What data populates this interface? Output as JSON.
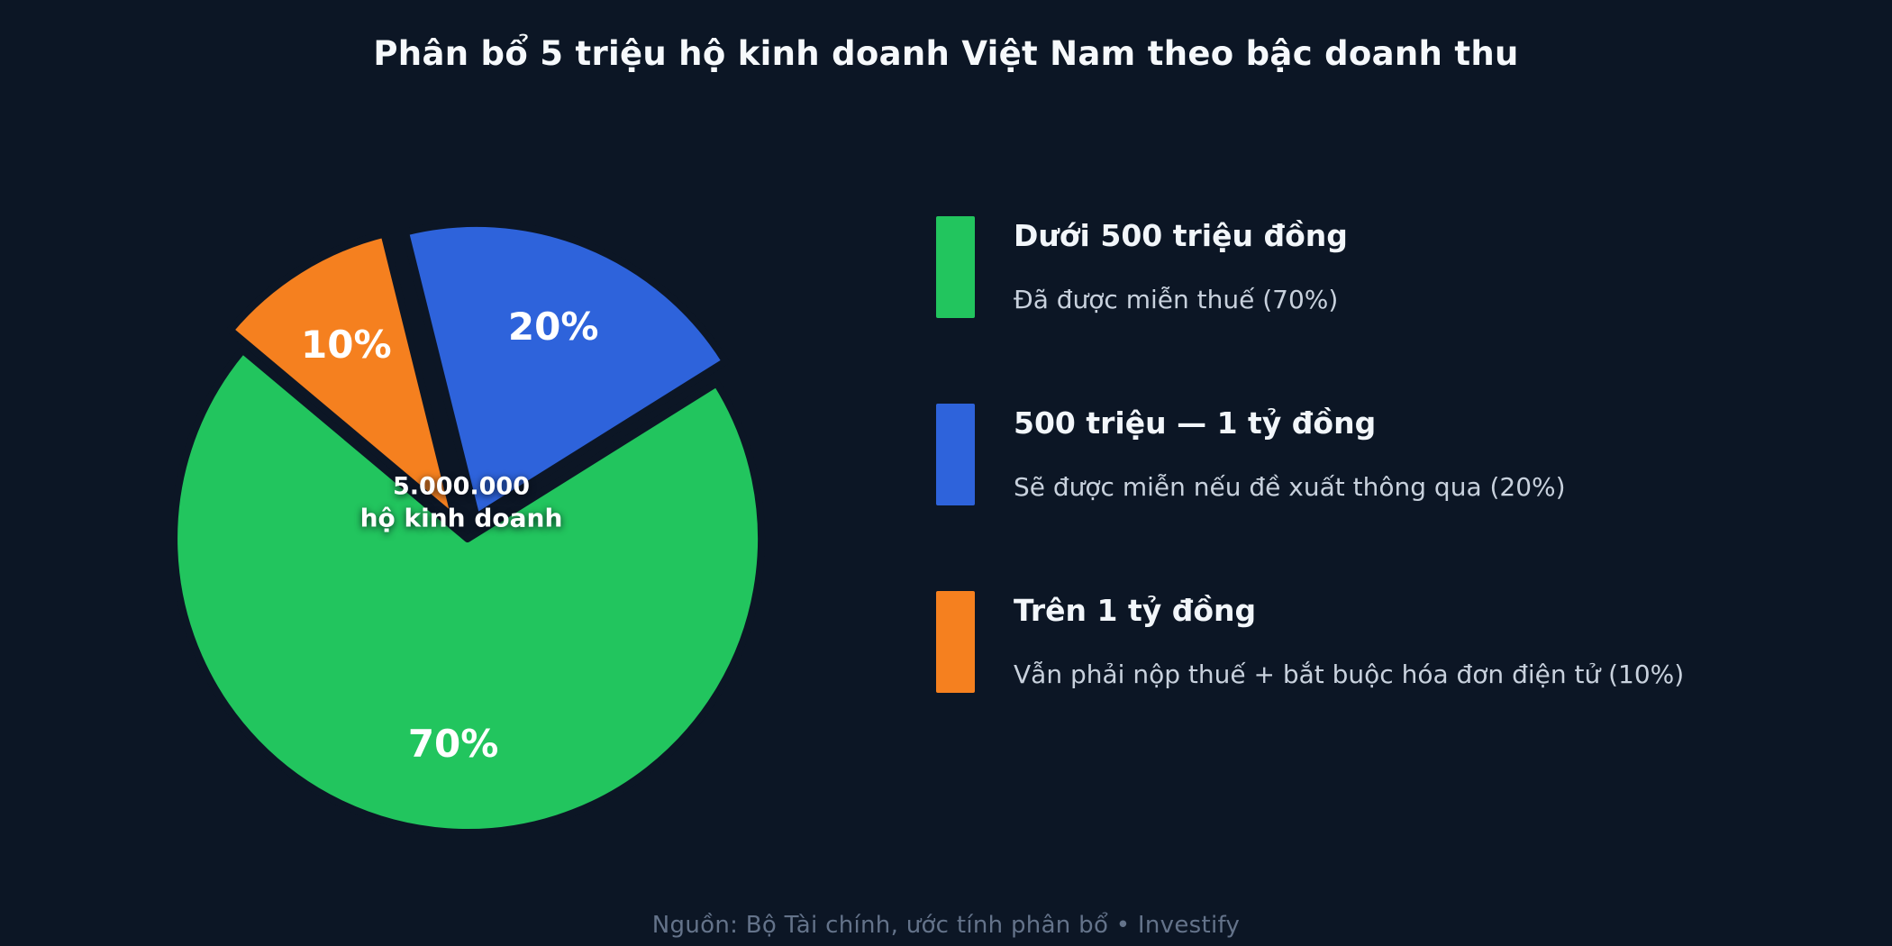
{
  "title": "Phân bổ 5 triệu hộ kinh doanh Việt Nam theo bậc doanh thu",
  "chart_data": {
    "type": "pie",
    "title": "Phân bổ 5 triệu hộ kinh doanh Việt Nam theo bậc doanh thu",
    "start_angle_deg": 104,
    "direction": "clockwise",
    "draw_order": [
      1,
      0,
      2
    ],
    "legend_position": "right",
    "center_label": {
      "line1": "5.000.000",
      "line2": "hộ kinh doanh"
    },
    "slices": [
      {
        "label": "Dưới 500 triệu đồng",
        "note": "Đã được miễn thuế (70%)",
        "value": 70,
        "percent_label": "70%",
        "color": "#22c55e",
        "exploded": false
      },
      {
        "label": "500 triệu — 1 tỷ đồng",
        "note": "Sẽ được miễn nếu đề xuất thông qua (20%)",
        "value": 20,
        "percent_label": "20%",
        "color": "#2e63db",
        "exploded": true
      },
      {
        "label": "Trên 1 tỷ đồng",
        "note": "Vẫn phải nộp thuế + bắt buộc hóa đơn điện tử (10%)",
        "value": 10,
        "percent_label": "10%",
        "color": "#f5801f",
        "exploded": true
      }
    ]
  },
  "footer": {
    "text": "Nguồn: Bộ Tài chính, ước tính phân bổ  •  Investify"
  },
  "colors": {
    "background": "#0c1625",
    "green": "#22c55e",
    "blue": "#2e63db",
    "orange": "#f5801f"
  }
}
